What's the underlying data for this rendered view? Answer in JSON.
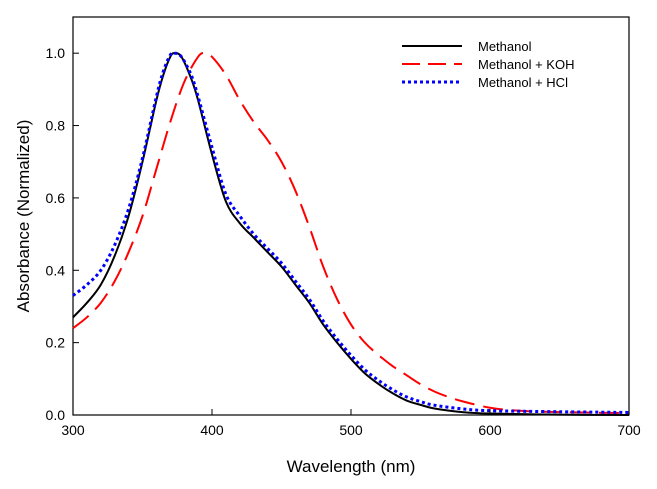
{
  "chart_data": {
    "type": "line",
    "title": "",
    "xlabel": "Wavelength (nm)",
    "ylabel": "Absorbance (Normalized)",
    "xlim": [
      300,
      700
    ],
    "ylim": [
      0,
      1.1
    ],
    "xticks": [
      300,
      400,
      500,
      600,
      700
    ],
    "xtick_labels": [
      "300",
      "400",
      "500",
      "600",
      "700"
    ],
    "yticks": [
      0.0,
      0.2,
      0.4,
      0.6,
      0.8,
      1.0
    ],
    "ytick_labels": [
      "0.0",
      "0.2",
      "0.4",
      "0.6",
      "0.8",
      "1.0"
    ],
    "grid": false,
    "legend_position": "top-right",
    "series": [
      {
        "name": "Methanol",
        "color": "#000000",
        "style": "solid",
        "x": [
          300,
          310,
          320,
          330,
          340,
          350,
          360,
          365,
          370,
          373,
          378,
          385,
          390,
          400,
          410,
          420,
          430,
          440,
          450,
          460,
          470,
          480,
          490,
          500,
          510,
          520,
          530,
          540,
          550,
          560,
          580,
          600,
          650,
          700
        ],
        "y": [
          0.27,
          0.31,
          0.36,
          0.44,
          0.55,
          0.7,
          0.87,
          0.94,
          0.99,
          1.0,
          0.99,
          0.93,
          0.87,
          0.72,
          0.59,
          0.53,
          0.49,
          0.45,
          0.41,
          0.36,
          0.31,
          0.25,
          0.2,
          0.155,
          0.115,
          0.085,
          0.06,
          0.04,
          0.028,
          0.018,
          0.008,
          0.004,
          0.001,
          0.0
        ]
      },
      {
        "name": "Methanol + KOH",
        "color": "#ff0000",
        "style": "dashed",
        "x": [
          300,
          310,
          320,
          330,
          340,
          350,
          360,
          370,
          380,
          390,
          395,
          400,
          410,
          420,
          430,
          440,
          450,
          460,
          470,
          480,
          490,
          500,
          510,
          520,
          530,
          540,
          550,
          560,
          570,
          580,
          600,
          620,
          650,
          700
        ],
        "y": [
          0.24,
          0.27,
          0.31,
          0.37,
          0.45,
          0.55,
          0.68,
          0.81,
          0.92,
          0.99,
          1.0,
          0.99,
          0.94,
          0.87,
          0.81,
          0.76,
          0.7,
          0.62,
          0.52,
          0.41,
          0.32,
          0.25,
          0.2,
          0.165,
          0.135,
          0.11,
          0.085,
          0.065,
          0.05,
          0.038,
          0.02,
          0.012,
          0.008,
          0.005
        ]
      },
      {
        "name": "Methanol + HCl",
        "color": "#0000ff",
        "style": "dotted",
        "x": [
          300,
          310,
          320,
          330,
          340,
          350,
          360,
          365,
          370,
          373,
          378,
          385,
          390,
          400,
          410,
          420,
          430,
          440,
          450,
          460,
          470,
          480,
          490,
          500,
          510,
          520,
          530,
          540,
          550,
          560,
          580,
          600,
          650,
          700
        ],
        "y": [
          0.33,
          0.36,
          0.4,
          0.47,
          0.57,
          0.71,
          0.88,
          0.95,
          0.995,
          1.0,
          0.99,
          0.94,
          0.88,
          0.74,
          0.61,
          0.55,
          0.5,
          0.46,
          0.42,
          0.37,
          0.32,
          0.26,
          0.21,
          0.165,
          0.125,
          0.095,
          0.07,
          0.05,
          0.037,
          0.027,
          0.017,
          0.012,
          0.009,
          0.007
        ]
      }
    ]
  }
}
